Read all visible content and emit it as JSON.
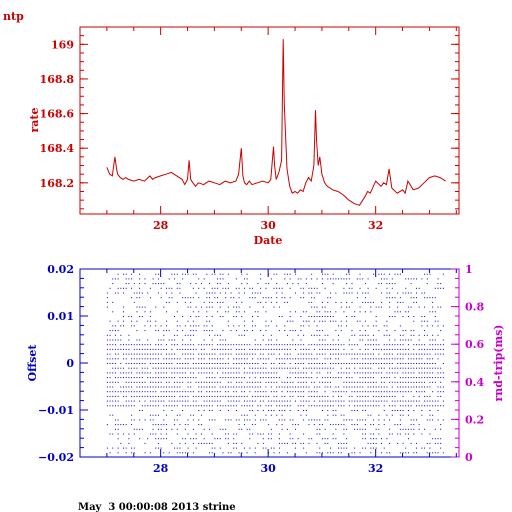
{
  "page_label": "ntp",
  "footer_text": "May  3 00:00:08 2013 strine",
  "colors": {
    "rate": "#cc0000",
    "offset": "#0000cc",
    "rtrip": "#cc00cc"
  },
  "chart_data": [
    {
      "type": "line",
      "title": "",
      "xlabel": "Date",
      "ylabel": "rate",
      "xlim": [
        26.5,
        33.55
      ],
      "ylim": [
        168.02,
        169.1
      ],
      "xticks": [
        28,
        30,
        32
      ],
      "xtick_labels": [
        "28",
        "30",
        "32"
      ],
      "yticks": [
        168.2,
        168.4,
        168.6,
        168.8,
        169
      ],
      "ytick_labels": [
        "168.2",
        "168.4",
        "168.6",
        "168.8",
        "169"
      ],
      "grid": false,
      "series": [
        {
          "x": [
            27.0,
            27.05,
            27.1,
            27.15,
            27.18,
            27.2,
            27.25,
            27.3,
            27.35,
            27.4,
            27.5,
            27.6,
            27.7,
            27.8,
            27.85,
            27.9,
            28.0,
            28.1,
            28.2,
            28.3,
            28.4,
            28.45,
            28.5,
            28.53,
            28.56,
            28.6,
            28.65,
            28.7,
            28.8,
            28.9,
            29.0,
            29.1,
            29.2,
            29.3,
            29.4,
            29.45,
            29.5,
            29.53,
            29.56,
            29.6,
            29.65,
            29.7,
            29.8,
            29.9,
            30.0,
            30.05,
            30.1,
            30.12,
            30.15,
            30.2,
            30.25,
            30.28,
            30.3,
            30.35,
            30.4,
            30.45,
            30.5,
            30.55,
            30.6,
            30.65,
            30.7,
            30.75,
            30.8,
            30.85,
            30.88,
            30.9,
            30.93,
            30.96,
            31.0,
            31.05,
            31.1,
            31.2,
            31.3,
            31.4,
            31.5,
            31.6,
            31.7,
            31.8,
            31.85,
            31.9,
            32.0,
            32.1,
            32.15,
            32.2,
            32.25,
            32.3,
            32.4,
            32.5,
            32.55,
            32.6,
            32.7,
            32.8,
            32.9,
            33.0,
            33.1,
            33.2,
            33.3
          ],
          "y": [
            168.29,
            168.25,
            168.24,
            168.35,
            168.28,
            168.25,
            168.23,
            168.22,
            168.23,
            168.22,
            168.21,
            168.22,
            168.21,
            168.24,
            168.22,
            168.23,
            168.24,
            168.25,
            168.26,
            168.24,
            168.22,
            168.19,
            168.22,
            168.33,
            168.22,
            168.2,
            168.18,
            168.2,
            168.19,
            168.21,
            168.2,
            168.19,
            168.21,
            168.2,
            168.21,
            168.25,
            168.4,
            168.24,
            168.2,
            168.19,
            168.21,
            168.19,
            168.2,
            168.21,
            168.2,
            168.22,
            168.41,
            168.3,
            168.22,
            168.26,
            168.33,
            169.03,
            168.65,
            168.28,
            168.18,
            168.14,
            168.15,
            168.14,
            168.16,
            168.15,
            168.2,
            168.23,
            168.21,
            168.3,
            168.62,
            168.45,
            168.3,
            168.35,
            168.25,
            168.2,
            168.18,
            168.16,
            168.15,
            168.13,
            168.1,
            168.08,
            168.07,
            168.12,
            168.15,
            168.14,
            168.21,
            168.18,
            168.2,
            168.19,
            168.28,
            168.17,
            168.14,
            168.16,
            168.14,
            168.21,
            168.16,
            168.17,
            168.2,
            168.23,
            168.24,
            168.23,
            168.21
          ]
        }
      ]
    },
    {
      "type": "scatter",
      "title": "",
      "xlabel": "",
      "ylabel": "Offset",
      "y2label": "rnd-trip(ms)",
      "xlim": [
        26.5,
        33.55
      ],
      "ylim": [
        -0.02,
        0.02
      ],
      "y2lim": [
        0,
        1
      ],
      "xticks": [
        28,
        30,
        32
      ],
      "xtick_labels": [
        "28",
        "30",
        "32"
      ],
      "yticks": [
        -0.02,
        -0.01,
        0,
        0.01,
        0.02
      ],
      "ytick_labels": [
        "−0.02",
        "−0.01",
        "0",
        "0.01",
        "0.02"
      ],
      "y2ticks": [
        0,
        0.2,
        0.4,
        0.6,
        0.8,
        1
      ],
      "y2tick_labels": [
        "0",
        "0.2",
        "0.4",
        "0.6",
        "0.8",
        "1"
      ],
      "grid": false,
      "series": [
        {
          "x_start": 27.0,
          "x_end": 33.25,
          "x_step": 0.05,
          "offset_band": [
            -0.019,
            0.019
          ],
          "core_band": [
            -0.009,
            0.005
          ],
          "row_spacing": 0.001
        }
      ]
    }
  ]
}
